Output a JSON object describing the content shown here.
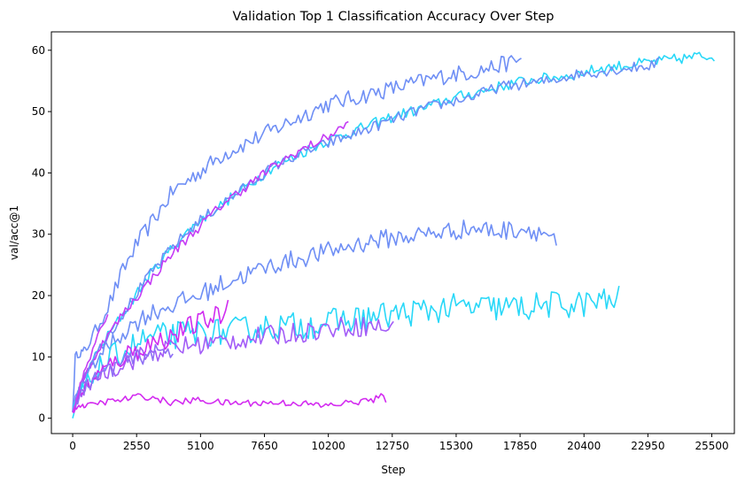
{
  "chart_data": {
    "type": "line",
    "title": "Validation Top 1 Classification Accuracy Over Step",
    "xlabel": "Step",
    "ylabel": "val/acc@1",
    "xlim": [
      -850,
      26400
    ],
    "ylim": [
      -2.5,
      63
    ],
    "xticks": [
      0,
      2550,
      5100,
      7650,
      10200,
      12750,
      15300,
      17850,
      20400,
      22950,
      25500
    ],
    "yticks": [
      0,
      10,
      20,
      30,
      40,
      50,
      60
    ],
    "grid": false,
    "legend": "none",
    "series": [
      {
        "color": "#6f8ff5",
        "noise": 1.4,
        "x": [
          0,
          100,
          200,
          500,
          1000,
          1500,
          2000,
          2500,
          3000,
          3500,
          4000,
          5000,
          6000,
          7000,
          8000,
          9000,
          10000,
          11000,
          12000,
          13000,
          14000,
          15000,
          16000,
          17000,
          17900
        ],
        "y": [
          1,
          10,
          10.5,
          11,
          15,
          19,
          24,
          28,
          31,
          34,
          37,
          40,
          43,
          45,
          47,
          49,
          51,
          52,
          53,
          54,
          55,
          56,
          56.5,
          57.5,
          58.5
        ]
      },
      {
        "color": "#29d8f8",
        "noise": 0.9,
        "x": [
          0,
          200,
          500,
          1000,
          1500,
          2000,
          2500,
          3000,
          4000,
          5000,
          6000,
          7000,
          8000,
          9000,
          10000,
          11000,
          12000,
          13000,
          14000,
          15000,
          16000,
          17000,
          18000,
          19000,
          20000,
          21000,
          22000,
          23000,
          24000,
          25000,
          25600
        ],
        "y": [
          0,
          4,
          7,
          11,
          14,
          17,
          20,
          23,
          28,
          32,
          35,
          38,
          41,
          43,
          45,
          46.5,
          48,
          49.5,
          50.5,
          52,
          53,
          54,
          55,
          55.5,
          56,
          57,
          57.5,
          58,
          58.5,
          59,
          59
        ]
      },
      {
        "color": "#6f8ff5",
        "noise": 0.9,
        "x": [
          0,
          200,
          500,
          1000,
          1500,
          2000,
          2500,
          3000,
          4000,
          5000,
          6000,
          7000,
          8000,
          9000,
          10000,
          11000,
          12000,
          13000,
          14000,
          15000,
          16000,
          17000,
          18000,
          19000,
          20000,
          21000,
          22000,
          23000,
          23400
        ],
        "y": [
          1,
          4,
          7,
          11,
          14,
          17,
          20,
          23,
          28,
          32,
          35,
          38,
          41,
          43,
          44.5,
          46,
          47.5,
          49,
          50.5,
          51.5,
          52.5,
          54,
          54.5,
          55,
          56,
          56.5,
          57,
          57.5,
          58
        ]
      },
      {
        "color": "#c53cf5",
        "noise": 0.8,
        "x": [
          0,
          500,
          1000,
          1500,
          2000,
          3000,
          4000,
          5000,
          6000,
          7000,
          8000,
          9000,
          10000,
          11000
        ],
        "y": [
          1,
          7,
          11,
          14,
          17,
          22,
          27,
          31,
          35,
          38,
          41,
          43.5,
          45.5,
          48
        ]
      },
      {
        "color": "#6f8ff5",
        "noise": 1.6,
        "x": [
          0,
          300,
          1000,
          2000,
          3000,
          4000,
          5000,
          6000,
          7000,
          8000,
          9000,
          10000,
          11000,
          12000,
          13000,
          14000,
          15000,
          16000,
          17000,
          18000,
          19000,
          19300
        ],
        "y": [
          2,
          5,
          10,
          14,
          17,
          18.5,
          20,
          22,
          23.5,
          25,
          26,
          27,
          28,
          29,
          29.5,
          30,
          30.5,
          31,
          30.5,
          31,
          30,
          28
        ]
      },
      {
        "color": "#29d8f8",
        "noise": 2.3,
        "x": [
          0,
          300,
          1000,
          2000,
          3000,
          4000,
          5000,
          6000,
          7000,
          8000,
          9000,
          10000,
          11000,
          12000,
          13000,
          14000,
          15000,
          16000,
          17000,
          18000,
          19000,
          20000,
          21000,
          21500,
          21800
        ],
        "y": [
          1,
          4,
          8,
          11,
          13,
          13.5,
          14,
          14,
          14.5,
          15,
          15,
          15.5,
          16,
          16.5,
          17,
          17.5,
          18,
          18,
          18,
          18,
          18.5,
          18.5,
          19,
          19,
          19.5
        ]
      },
      {
        "color": "#a35cf7",
        "noise": 1.7,
        "x": [
          0,
          300,
          1000,
          2000,
          3000,
          4000,
          5000,
          6000,
          7000,
          8000,
          9000,
          10000,
          11000,
          12000,
          12800
        ],
        "y": [
          1,
          4,
          7,
          9,
          10.5,
          11.5,
          12,
          12.5,
          13,
          13.5,
          14,
          14.5,
          15,
          15,
          14.5
        ]
      },
      {
        "color": "#d02cf0",
        "noise": 1.8,
        "x": [
          0,
          300,
          1000,
          2000,
          3000,
          4000,
          5000,
          6000,
          6200
        ],
        "y": [
          1,
          4,
          7,
          10,
          12,
          13.5,
          15.5,
          17,
          18.5
        ]
      },
      {
        "color": "#8f6ff5",
        "noise": 1.4,
        "x": [
          0,
          300,
          1000,
          2000,
          3000,
          4000
        ],
        "y": [
          1,
          4,
          7,
          9,
          10.5,
          11
        ]
      },
      {
        "color": "#c540f4",
        "noise": 0.9,
        "x": [
          0,
          200,
          500,
          1000,
          1400
        ],
        "y": [
          1,
          4,
          8,
          13,
          17.5
        ]
      },
      {
        "color": "#d32cf0",
        "noise": 0.55,
        "x": [
          0,
          200,
          500,
          1000,
          2000,
          2500,
          3000,
          4000,
          5000,
          6000,
          7000,
          8000,
          9000,
          10000,
          11000,
          12000,
          12300,
          12500
        ],
        "y": [
          1,
          2,
          2,
          2.5,
          3,
          3.5,
          3.5,
          2.5,
          3,
          2.5,
          2.5,
          2.5,
          2.5,
          2,
          2.5,
          3,
          3.5,
          3
        ]
      }
    ]
  }
}
